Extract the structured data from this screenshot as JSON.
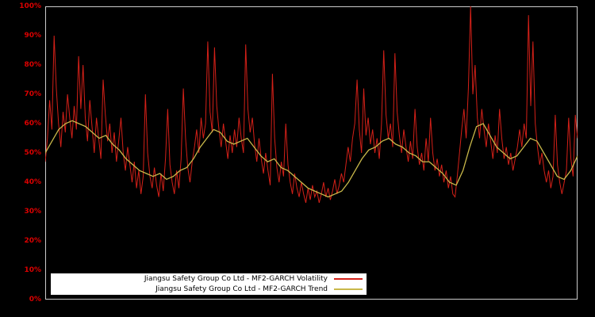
{
  "chart_data": {
    "type": "line",
    "title": "",
    "background": "#000000",
    "plot_border_color": "#cccccc",
    "axis_label_color": "#dd0000",
    "legend_background": "#ffffff",
    "legend_position": "bottom-left",
    "grid": false,
    "ylim": [
      0,
      100
    ],
    "y_ticks": [
      "100%",
      "90%",
      "80%",
      "70%",
      "60%",
      "50%",
      "40%",
      "30%",
      "20%",
      "10%",
      "0%"
    ],
    "y_tick_values": [
      100,
      90,
      80,
      70,
      60,
      50,
      40,
      30,
      20,
      10,
      0
    ],
    "x_ticks": [],
    "series": [
      {
        "name": "Jiangsu Safety Group Co Ltd - MF2-GARCH Volatility",
        "color": "#d42018",
        "width": 1,
        "values": [
          47,
          55,
          68,
          58,
          90,
          72,
          60,
          52,
          64,
          57,
          70,
          62,
          55,
          66,
          58,
          83,
          65,
          80,
          62,
          54,
          68,
          59,
          50,
          62,
          55,
          48,
          75,
          63,
          54,
          60,
          50,
          57,
          47,
          54,
          62,
          50,
          44,
          52,
          46,
          40,
          47,
          38,
          44,
          36,
          42,
          70,
          50,
          42,
          38,
          45,
          39,
          35,
          43,
          37,
          48,
          65,
          46,
          40,
          36,
          44,
          38,
          48,
          72,
          55,
          45,
          40,
          47,
          52,
          58,
          50,
          62,
          55,
          60,
          88,
          64,
          57,
          86,
          66,
          58,
          52,
          60,
          54,
          48,
          56,
          50,
          58,
          52,
          62,
          55,
          50,
          87,
          65,
          57,
          62,
          53,
          47,
          55,
          48,
          43,
          50,
          44,
          39,
          77,
          55,
          45,
          40,
          47,
          42,
          60,
          46,
          40,
          36,
          43,
          38,
          35,
          40,
          36,
          33,
          38,
          34,
          39,
          35,
          37,
          33,
          36,
          40,
          35,
          38,
          34,
          37,
          41,
          36,
          39,
          43,
          40,
          46,
          52,
          47,
          55,
          60,
          75,
          58,
          50,
          72,
          56,
          62,
          53,
          58,
          50,
          55,
          48,
          60,
          85,
          63,
          55,
          60,
          52,
          84,
          64,
          56,
          50,
          58,
          52,
          47,
          54,
          48,
          65,
          52,
          46,
          50,
          44,
          55,
          47,
          62,
          50,
          44,
          48,
          42,
          46,
          40,
          44,
          38,
          42,
          36,
          35,
          42,
          50,
          58,
          65,
          55,
          72,
          100,
          70,
          80,
          62,
          55,
          65,
          58,
          52,
          60,
          54,
          48,
          56,
          50,
          65,
          55,
          48,
          52,
          46,
          50,
          44,
          48,
          52,
          58,
          52,
          60,
          55,
          97,
          66,
          88,
          60,
          52,
          46,
          50,
          44,
          40,
          44,
          38,
          42,
          63,
          46,
          40,
          36,
          40,
          44,
          62,
          48,
          42,
          63,
          55
        ]
      },
      {
        "name": "Jiangsu Safety Group Co Ltd - MF2-GARCH Trend",
        "color": "#c9b84a",
        "width": 1.3,
        "values": [
          50,
          54,
          58,
          60,
          61,
          60,
          59,
          57,
          55,
          56,
          53,
          51,
          48,
          46,
          44,
          43,
          42,
          43,
          41,
          42,
          44,
          45,
          48,
          52,
          55,
          58,
          57,
          54,
          53,
          54,
          55,
          52,
          49,
          47,
          48,
          45,
          44,
          42,
          40,
          38,
          37,
          36,
          35,
          36,
          37,
          40,
          44,
          48,
          51,
          52,
          54,
          55,
          53,
          52,
          50,
          49,
          47,
          47,
          45,
          43,
          40,
          39,
          44,
          52,
          59,
          60,
          56,
          52,
          50,
          48,
          49,
          52,
          55,
          54,
          50,
          46,
          42,
          41,
          44,
          49
        ]
      }
    ]
  }
}
